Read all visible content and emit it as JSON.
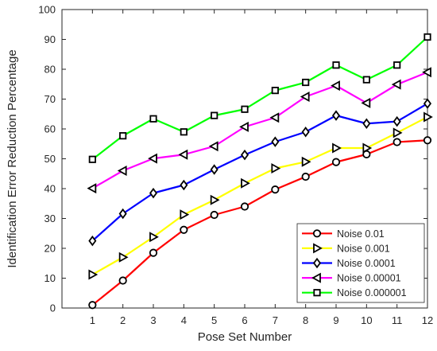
{
  "chart_data": {
    "type": "line",
    "xlabel": "Pose Set Number",
    "ylabel": "Identification Error Reduction Percentage",
    "x": [
      1,
      2,
      3,
      4,
      5,
      6,
      7,
      8,
      9,
      10,
      11,
      12
    ],
    "xlim": [
      0,
      12
    ],
    "ylim": [
      0,
      100
    ],
    "xticks": [
      1,
      2,
      3,
      4,
      5,
      6,
      7,
      8,
      9,
      10,
      11,
      12
    ],
    "yticks": [
      0,
      10,
      20,
      30,
      40,
      50,
      60,
      70,
      80,
      90,
      100
    ],
    "grid": false,
    "legend_location": "bottom-right",
    "series": [
      {
        "name": "Noise 0.01",
        "color": "#ff0000",
        "marker": "circle",
        "values": [
          1.0,
          9.2,
          18.5,
          26.2,
          31.2,
          34.0,
          39.7,
          44.0,
          48.9,
          51.5,
          55.6,
          56.2
        ]
      },
      {
        "name": "Noise 0.001",
        "color": "#ffff00",
        "marker": "triangle-right",
        "values": [
          11.2,
          17.0,
          23.8,
          31.3,
          36.2,
          41.8,
          46.8,
          49.0,
          53.6,
          53.6,
          58.7,
          64.0
        ]
      },
      {
        "name": "Noise 0.0001",
        "color": "#0000ff",
        "marker": "diamond",
        "values": [
          22.5,
          31.6,
          38.5,
          41.2,
          46.4,
          51.3,
          55.7,
          59.0,
          64.5,
          61.8,
          62.5,
          68.5
        ]
      },
      {
        "name": "Noise 0.00001",
        "color": "#ff00ff",
        "marker": "triangle-left",
        "values": [
          40.1,
          46.0,
          50.1,
          51.4,
          54.2,
          60.7,
          63.8,
          70.8,
          74.5,
          68.7,
          74.9,
          79.0
        ]
      },
      {
        "name": "Noise 0.000001",
        "color": "#00ff00",
        "marker": "square",
        "values": [
          49.8,
          57.7,
          63.4,
          59.0,
          64.5,
          66.6,
          72.9,
          75.6,
          81.4,
          76.5,
          81.4,
          90.8
        ]
      }
    ]
  }
}
